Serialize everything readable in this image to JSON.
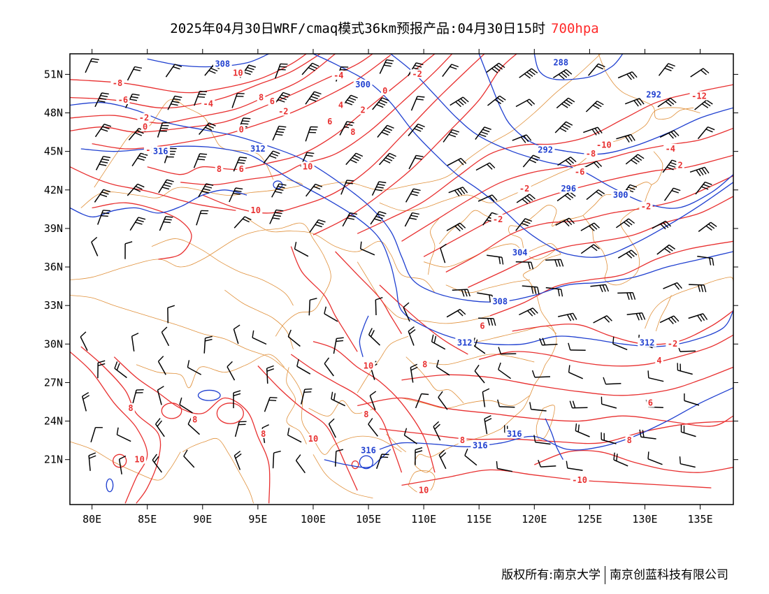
{
  "title": {
    "main": "2025年04月30日WRF/cmaq模式36km预报产品:04月30日15时",
    "level": "700hpa"
  },
  "colors": {
    "temperature": "#e83030",
    "height": "#2040d0",
    "boundary": "#e0903a",
    "wind": "#000000"
  },
  "axes": {
    "lon_labels": [
      "80E",
      "85E",
      "90E",
      "95E",
      "100E",
      "105E",
      "110E",
      "115E",
      "120E",
      "125E",
      "130E",
      "135E"
    ],
    "lat_labels": [
      "51N",
      "48N",
      "45N",
      "42N",
      "39N",
      "36N",
      "33N",
      "30N",
      "27N",
      "24N",
      "21N"
    ]
  },
  "contour_labels": {
    "temperature": [
      {
        "t": "-8",
        "lon": 82.3,
        "lat": 50.2
      },
      {
        "t": "-6",
        "lon": 82.8,
        "lat": 48.9
      },
      {
        "t": "-2",
        "lon": 84.7,
        "lat": 47.5
      },
      {
        "t": "0",
        "lon": 84.8,
        "lat": 46.8
      },
      {
        "t": "-2",
        "lon": 85.3,
        "lat": 45.0
      },
      {
        "t": "10",
        "lon": 93.2,
        "lat": 51.0
      },
      {
        "t": "-4",
        "lon": 90.5,
        "lat": 48.6
      },
      {
        "t": "8",
        "lon": 95.3,
        "lat": 49.1
      },
      {
        "t": "6",
        "lon": 96.3,
        "lat": 48.8
      },
      {
        "t": "-2",
        "lon": 97.3,
        "lat": 48.0
      },
      {
        "t": "0",
        "lon": 93.5,
        "lat": 46.6
      },
      {
        "t": "8",
        "lon": 91.5,
        "lat": 43.5
      },
      {
        "t": "6",
        "lon": 93.5,
        "lat": 43.5
      },
      {
        "t": "10",
        "lon": 99.5,
        "lat": 43.7
      },
      {
        "t": "10",
        "lon": 94.8,
        "lat": 40.3
      },
      {
        "t": "-4",
        "lon": 102.3,
        "lat": 50.8
      },
      {
        "t": "0",
        "lon": 106.5,
        "lat": 49.6
      },
      {
        "t": "-2",
        "lon": 109.4,
        "lat": 50.9
      },
      {
        "t": "4",
        "lon": 102.5,
        "lat": 48.5
      },
      {
        "t": "2",
        "lon": 104.5,
        "lat": 48.1
      },
      {
        "t": "6",
        "lon": 101.5,
        "lat": 47.2
      },
      {
        "t": "8",
        "lon": 103.6,
        "lat": 46.4
      },
      {
        "t": "-10",
        "lon": 126.3,
        "lat": 45.4
      },
      {
        "t": "-8",
        "lon": 125.1,
        "lat": 44.7
      },
      {
        "t": "-6",
        "lon": 124.1,
        "lat": 43.3
      },
      {
        "t": "-2",
        "lon": 119.1,
        "lat": 42.0
      },
      {
        "t": "-2",
        "lon": 116.7,
        "lat": 39.6
      },
      {
        "t": "-2",
        "lon": 130.1,
        "lat": 40.6
      },
      {
        "t": "-4",
        "lon": 132.3,
        "lat": 45.1
      },
      {
        "t": "2",
        "lon": 133.2,
        "lat": 43.8
      },
      {
        "t": "-12",
        "lon": 134.9,
        "lat": 49.2
      },
      {
        "t": "6",
        "lon": 115.3,
        "lat": 31.3
      },
      {
        "t": "8",
        "lon": 110.1,
        "lat": 28.3
      },
      {
        "t": "10",
        "lon": 105.0,
        "lat": 28.2
      },
      {
        "t": "-2",
        "lon": 132.5,
        "lat": 29.9
      },
      {
        "t": "4",
        "lon": 131.3,
        "lat": 28.6
      },
      {
        "t": "6",
        "lon": 130.5,
        "lat": 25.3
      },
      {
        "t": "8",
        "lon": 128.6,
        "lat": 22.4
      },
      {
        "t": "8",
        "lon": 113.5,
        "lat": 22.4
      },
      {
        "t": "8",
        "lon": 83.5,
        "lat": 24.9
      },
      {
        "t": "8",
        "lon": 89.3,
        "lat": 24.0
      },
      {
        "t": "8",
        "lon": 95.5,
        "lat": 22.9
      },
      {
        "t": "10",
        "lon": 84.3,
        "lat": 20.9
      },
      {
        "t": "10",
        "lon": 100.0,
        "lat": 22.5
      },
      {
        "t": "8",
        "lon": 104.8,
        "lat": 24.4
      },
      {
        "t": "10",
        "lon": 110.0,
        "lat": 18.5
      },
      {
        "t": "-10",
        "lon": 124.1,
        "lat": 19.3
      }
    ],
    "height": [
      {
        "t": "308",
        "lon": 91.8,
        "lat": 51.7
      },
      {
        "t": "300",
        "lon": 104.5,
        "lat": 50.1
      },
      {
        "t": "316",
        "lon": 86.2,
        "lat": 44.9
      },
      {
        "t": "312",
        "lon": 95.0,
        "lat": 45.1
      },
      {
        "t": "288",
        "lon": 122.4,
        "lat": 51.8
      },
      {
        "t": "292",
        "lon": 121.0,
        "lat": 45.0
      },
      {
        "t": "292",
        "lon": 130.8,
        "lat": 49.3
      },
      {
        "t": "296",
        "lon": 123.1,
        "lat": 42.0
      },
      {
        "t": "300",
        "lon": 127.8,
        "lat": 41.5
      },
      {
        "t": "304",
        "lon": 118.7,
        "lat": 37.0
      },
      {
        "t": "308",
        "lon": 116.9,
        "lat": 33.2
      },
      {
        "t": "312",
        "lon": 113.7,
        "lat": 30.0
      },
      {
        "t": "312",
        "lon": 130.2,
        "lat": 30.0
      },
      {
        "t": "316",
        "lon": 118.2,
        "lat": 22.9
      },
      {
        "t": "316",
        "lon": 115.1,
        "lat": 22.0
      },
      {
        "t": "316",
        "lon": 105.0,
        "lat": 21.6
      }
    ]
  },
  "credit": {
    "left": "版权所有:南京大学",
    "right": "南京创蓝科技有限公司"
  }
}
